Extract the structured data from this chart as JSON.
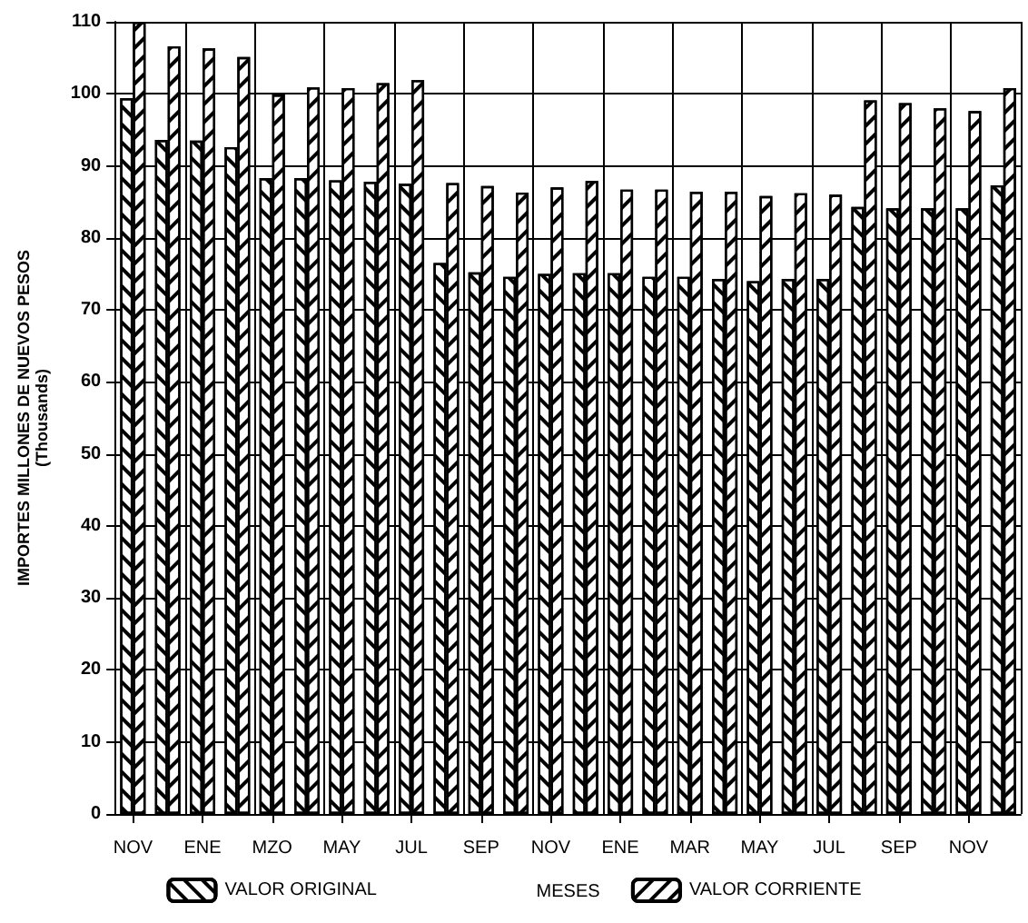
{
  "chart_data": {
    "type": "bar",
    "xlabel": "MESES",
    "ylabel": "IMPORTES MILLONES DE NUEVOS PESOS\n(Thousands)",
    "categories": [
      "NOV",
      null,
      "ENE",
      null,
      "MZO",
      null,
      "MAY",
      null,
      "JUL",
      null,
      "SEP",
      null,
      "NOV",
      null,
      "ENE",
      null,
      "MAR",
      null,
      "MAY",
      null,
      "JUL",
      null,
      "SEP",
      null,
      "NOV",
      null
    ],
    "series": [
      {
        "name": "VALOR ORIGINAL",
        "color": "#ffffff",
        "values": [
          99.4,
          93.6,
          93.5,
          92.6,
          88.3,
          88.3,
          88,
          87.8,
          87.5,
          76.5,
          75.2,
          74.6,
          75,
          75.1,
          75.1,
          74.6,
          74.6,
          74.3,
          74,
          74.3,
          74.3,
          84.3,
          84.1,
          84.1,
          84.1,
          87.3
        ]
      },
      {
        "name": "VALOR CORRIENTE",
        "color": "#ffffff",
        "values": [
          110,
          106.6,
          106.3,
          105.1,
          99.9,
          100.9,
          100.8,
          101.5,
          101.9,
          87.6,
          87.2,
          86.3,
          87,
          87.9,
          86.7,
          86.7,
          86.4,
          86.4,
          85.8,
          86.2,
          86,
          99.1,
          98.7,
          98,
          97.6,
          100.8
        ]
      }
    ],
    "ylim": [
      0,
      110
    ],
    "yticks": [
      0,
      10,
      20,
      30,
      40,
      50,
      60,
      70,
      80,
      90,
      100,
      110
    ],
    "grid": true,
    "legend": "bottom"
  }
}
